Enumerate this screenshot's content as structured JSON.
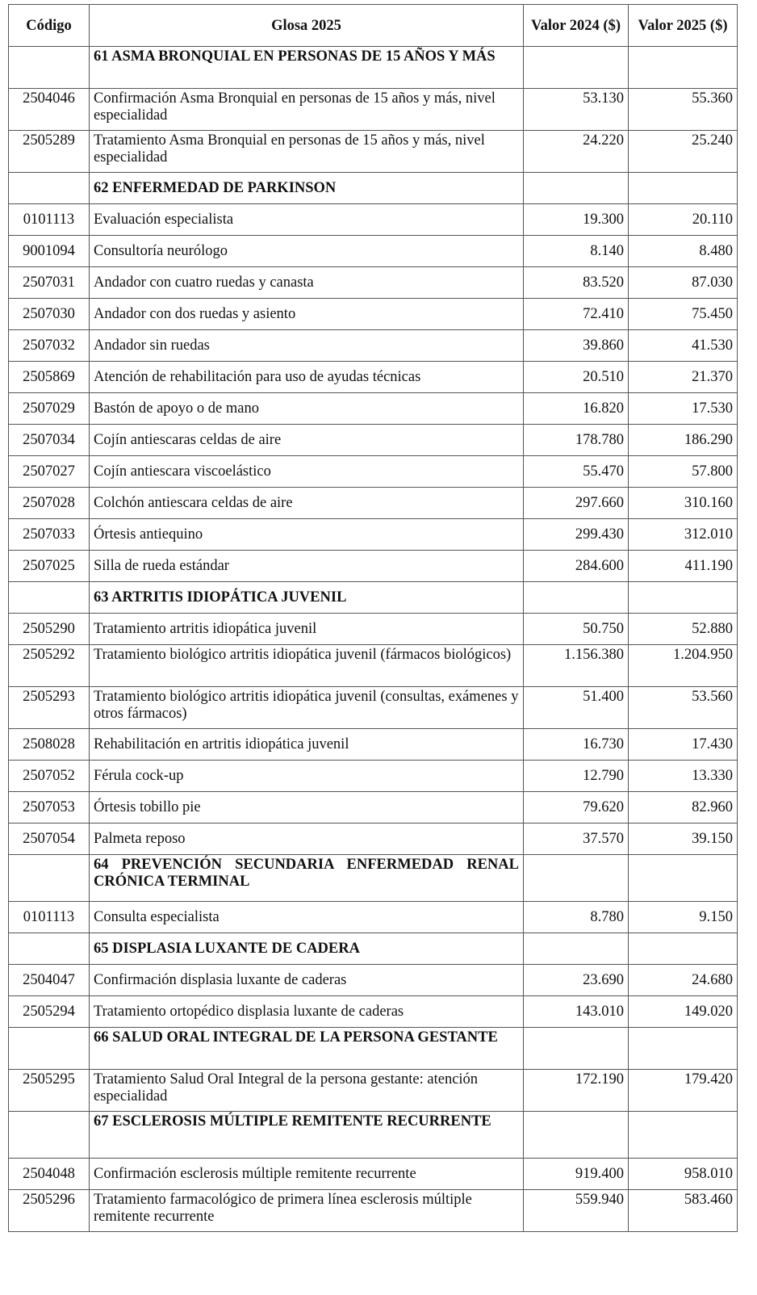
{
  "headers": {
    "code": "Código",
    "glosa": "Glosa 2025",
    "v2024": "Valor 2024 ($)",
    "v2025": "Valor 2025 ($)"
  },
  "rows": [
    {
      "type": "section",
      "h": "sec2",
      "glosa": "61 ASMA BRONQUIAL EN PERSONAS DE 15 AÑOS Y MÁS"
    },
    {
      "type": "item",
      "h": "d",
      "code": "2504046",
      "glosa": "Confirmación Asma Bronquial en personas de 15 años y más, nivel especialidad",
      "v2024": "53.130",
      "v2025": "55.360"
    },
    {
      "type": "item",
      "h": "d",
      "code": "2505289",
      "glosa": "Tratamiento Asma Bronquial en personas de 15 años y más, nivel especialidad",
      "v2024": "24.220",
      "v2025": "25.240"
    },
    {
      "type": "section",
      "h": "sec",
      "glosa": "62 ENFERMEDAD DE PARKINSON"
    },
    {
      "type": "item",
      "h": "s",
      "code": "0101113",
      "glosa": "Evaluación especialista",
      "v2024": "19.300",
      "v2025": "20.110"
    },
    {
      "type": "item",
      "h": "s",
      "code": "9001094",
      "glosa": "Consultoría neurólogo",
      "v2024": "8.140",
      "v2025": "8.480"
    },
    {
      "type": "item",
      "h": "s",
      "code": "2507031",
      "glosa": "Andador con cuatro ruedas y canasta",
      "v2024": "83.520",
      "v2025": "87.030"
    },
    {
      "type": "item",
      "h": "s",
      "code": "2507030",
      "glosa": "Andador con dos ruedas y asiento",
      "v2024": "72.410",
      "v2025": "75.450"
    },
    {
      "type": "item",
      "h": "s",
      "code": "2507032",
      "glosa": "Andador sin ruedas",
      "v2024": "39.860",
      "v2025": "41.530"
    },
    {
      "type": "item",
      "h": "s",
      "code": "2505869",
      "glosa": "Atención de rehabilitación para uso de ayudas técnicas",
      "v2024": "20.510",
      "v2025": "21.370"
    },
    {
      "type": "item",
      "h": "s",
      "code": "2507029",
      "glosa": "Bastón de apoyo o de mano",
      "v2024": "16.820",
      "v2025": "17.530"
    },
    {
      "type": "item",
      "h": "s",
      "code": "2507034",
      "glosa": "Cojín antiescaras celdas de aire",
      "v2024": "178.780",
      "v2025": "186.290"
    },
    {
      "type": "item",
      "h": "s",
      "code": "2507027",
      "glosa": "Cojín antiescara viscoelástico",
      "v2024": "55.470",
      "v2025": "57.800"
    },
    {
      "type": "item",
      "h": "s",
      "code": "2507028",
      "glosa": "Colchón antiescara celdas de aire",
      "v2024": "297.660",
      "v2025": "310.160"
    },
    {
      "type": "item",
      "h": "s",
      "code": "2507033",
      "glosa": "Órtesis antiequino",
      "v2024": "299.430",
      "v2025": "312.010"
    },
    {
      "type": "item",
      "h": "s",
      "code": "2507025",
      "glosa": "Silla de rueda estándar",
      "v2024": "284.600",
      "v2025": "411.190"
    },
    {
      "type": "section",
      "h": "sec",
      "glosa": "63 ARTRITIS IDIOPÁTICA JUVENIL"
    },
    {
      "type": "item",
      "h": "s",
      "code": "2505290",
      "glosa": "Tratamiento artritis idiopática juvenil",
      "v2024": "50.750",
      "v2025": "52.880"
    },
    {
      "type": "item",
      "h": "d",
      "code": "2505292",
      "glosa": "Tratamiento biológico artritis idiopática juvenil (fármacos biológicos)",
      "v2024": "1.156.380",
      "v2025": "1.204.950"
    },
    {
      "type": "item",
      "h": "d",
      "code": "2505293",
      "glosa": "Tratamiento biológico artritis idiopática juvenil (consultas, exámenes y otros fármacos)",
      "v2024": "51.400",
      "v2025": "53.560"
    },
    {
      "type": "item",
      "h": "s",
      "code": "2508028",
      "glosa": "Rehabilitación en artritis idiopática juvenil",
      "v2024": "16.730",
      "v2025": "17.430"
    },
    {
      "type": "item",
      "h": "s",
      "code": "2507052",
      "glosa": "Férula cock-up",
      "v2024": "12.790",
      "v2025": "13.330"
    },
    {
      "type": "item",
      "h": "s",
      "code": "2507053",
      "glosa": "Órtesis tobillo pie",
      "v2024": "79.620",
      "v2025": "82.960"
    },
    {
      "type": "item",
      "h": "s",
      "code": "2507054",
      "glosa": "Palmeta reposo",
      "v2024": "37.570",
      "v2025": "39.150"
    },
    {
      "type": "section",
      "h": "sec3",
      "glosa": "64 PREVENCIÓN SECUNDARIA ENFERMEDAD RENAL CRÓNICA TERMINAL"
    },
    {
      "type": "item",
      "h": "s",
      "code": "0101113",
      "glosa": "Consulta especialista",
      "v2024": "8.780",
      "v2025": "9.150"
    },
    {
      "type": "section",
      "h": "sec",
      "glosa": "65 DISPLASIA LUXANTE DE CADERA"
    },
    {
      "type": "item",
      "h": "s",
      "code": "2504047",
      "glosa": "Confirmación displasia luxante de caderas",
      "v2024": "23.690",
      "v2025": "24.680"
    },
    {
      "type": "item",
      "h": "s",
      "code": "2505294",
      "glosa": "Tratamiento ortopédico displasia luxante de caderas",
      "v2024": "143.010",
      "v2025": "149.020"
    },
    {
      "type": "section",
      "h": "sec2",
      "glosa": "66 SALUD ORAL INTEGRAL DE LA PERSONA GESTANTE"
    },
    {
      "type": "item",
      "h": "d",
      "code": "2505295",
      "glosa": "Tratamiento Salud Oral Integral de la persona gestante: atención especialidad",
      "v2024": "172.190",
      "v2025": "179.420"
    },
    {
      "type": "section",
      "h": "sec3",
      "glosa": "67 ESCLEROSIS MÚLTIPLE REMITENTE RECURRENTE"
    },
    {
      "type": "item",
      "h": "s",
      "code": "2504048",
      "glosa": "Confirmación esclerosis múltiple remitente recurrente",
      "v2024": "919.400",
      "v2025": "958.010"
    },
    {
      "type": "item",
      "h": "d",
      "code": "2505296",
      "glosa": "Tratamiento farmacológico de primera línea esclerosis múltiple remitente recurrente",
      "v2024": "559.940",
      "v2025": "583.460"
    }
  ]
}
